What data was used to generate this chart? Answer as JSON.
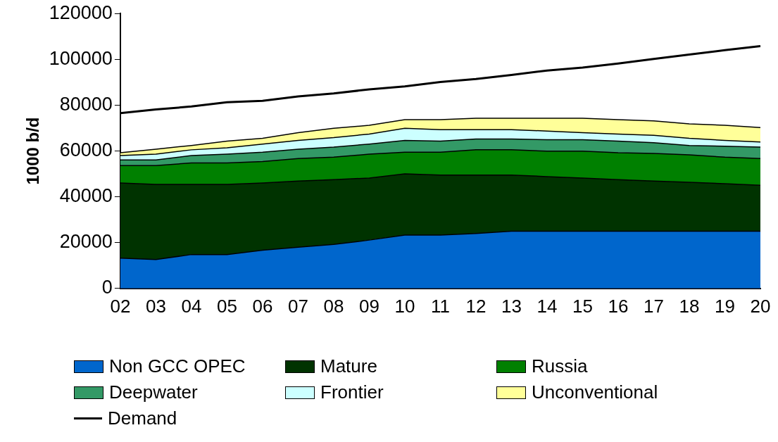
{
  "chart_data": {
    "type": "area",
    "stacked": true,
    "ylabel": "1000 b/d",
    "categories": [
      "02",
      "03",
      "04",
      "05",
      "06",
      "07",
      "08",
      "09",
      "10",
      "11",
      "12",
      "13",
      "14",
      "15",
      "16",
      "17",
      "18",
      "19",
      "20"
    ],
    "ylim": [
      0,
      120000
    ],
    "yticks": [
      0,
      20000,
      40000,
      60000,
      80000,
      100000,
      120000
    ],
    "grid": false,
    "legend": "bottom",
    "series": [
      {
        "name": "Non GCC OPEC",
        "color": "#0066cc",
        "values": [
          13200,
          12600,
          14800,
          14800,
          16700,
          18000,
          19200,
          21100,
          23300,
          23300,
          24000,
          25000,
          25000,
          25000,
          25000,
          25000,
          25000,
          25000,
          25000
        ]
      },
      {
        "name": "Mature",
        "color": "#003300",
        "values": [
          32800,
          32800,
          30600,
          30600,
          29300,
          28900,
          28300,
          27100,
          26700,
          26200,
          25500,
          24500,
          23800,
          23200,
          22500,
          21900,
          21300,
          20700,
          20000
        ]
      },
      {
        "name": "Russia",
        "color": "#008000",
        "values": [
          7600,
          8200,
          9400,
          9400,
          9400,
          9800,
          9800,
          10400,
          9500,
          10000,
          11000,
          11000,
          11100,
          11700,
          11700,
          12000,
          12000,
          11600,
          11700
        ]
      },
      {
        "name": "Deepwater",
        "color": "#339966",
        "values": [
          2500,
          2500,
          3200,
          3800,
          4100,
          4100,
          4400,
          4400,
          5100,
          4800,
          4700,
          4700,
          5000,
          5000,
          5100,
          4700,
          4100,
          4800,
          5000
        ]
      },
      {
        "name": "Frontier",
        "color": "#ccffff",
        "values": [
          1900,
          2500,
          2500,
          2800,
          3500,
          3800,
          4100,
          4400,
          5300,
          5000,
          4100,
          4100,
          3800,
          3100,
          3100,
          3200,
          3100,
          2500,
          2200
        ]
      },
      {
        "name": "Unconventional",
        "color": "#ffff99",
        "values": [
          1200,
          2200,
          1900,
          2900,
          2500,
          3400,
          4100,
          3800,
          3800,
          4400,
          5000,
          5000,
          5600,
          6300,
          6300,
          6300,
          6300,
          6600,
          6300
        ]
      },
      {
        "name": "Demand",
        "type": "line",
        "color": "#000000",
        "values": [
          76500,
          78100,
          79400,
          81300,
          81900,
          83800,
          85100,
          86900,
          88200,
          90100,
          91400,
          93200,
          95100,
          96400,
          98200,
          100200,
          102100,
          104000,
          105800
        ]
      }
    ]
  }
}
